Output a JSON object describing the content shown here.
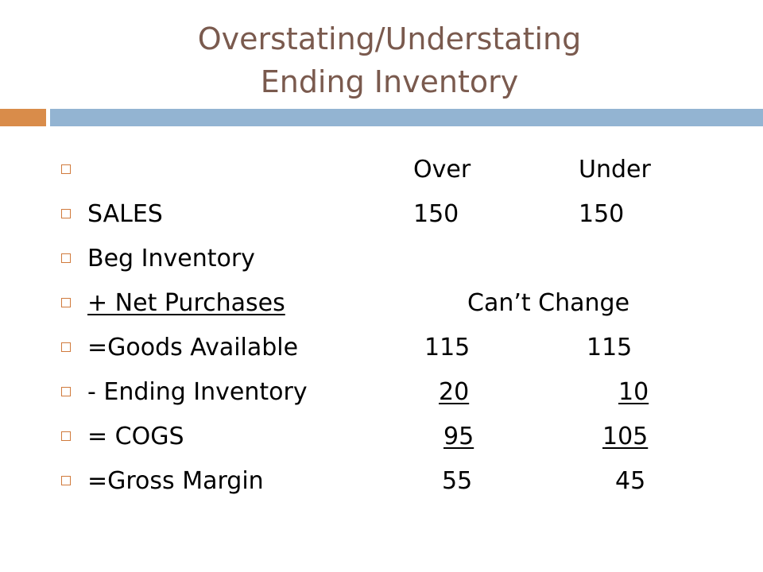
{
  "slide": {
    "title_line1": "Overstating/Understating",
    "title_line2": "Ending Inventory",
    "colors": {
      "title": "#7a5a4e",
      "accent_bar": "#d98c4a",
      "main_bar": "#93b4d2",
      "bullet": "#d07a3c"
    }
  },
  "table": {
    "headers": {
      "label": "",
      "over": "Over",
      "under": "Under"
    },
    "rows": [
      {
        "label": "SALES",
        "over": "150",
        "under": "150"
      },
      {
        "label": "Beg Inventory",
        "over": "",
        "under": ""
      },
      {
        "label": "+ Net Purchases",
        "note": "Can’t Change"
      },
      {
        "label": "=Goods Available",
        "over": "115",
        "under": "115"
      },
      {
        "label": "- Ending Inventory",
        "over": "20",
        "under": "10"
      },
      {
        "label": "= COGS",
        "over": "95",
        "under": "105"
      },
      {
        "label": "=Gross Margin",
        "over": "55",
        "under": "45"
      }
    ]
  }
}
